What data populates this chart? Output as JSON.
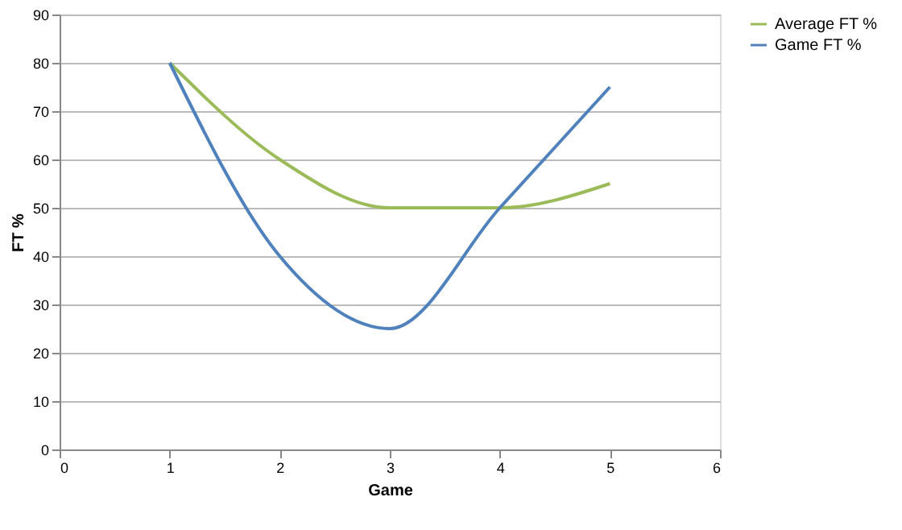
{
  "chart_data": {
    "type": "line",
    "xlabel": "Game",
    "ylabel": "FT %",
    "x": [
      1,
      2,
      3,
      4,
      5
    ],
    "series": [
      {
        "name": "Average FT %",
        "color": "#9bbb59",
        "values": [
          80,
          60,
          50,
          50,
          55
        ]
      },
      {
        "name": "Game FT %",
        "color": "#4f81bd",
        "values": [
          80,
          40,
          25,
          50,
          75
        ]
      }
    ],
    "xlim": [
      0,
      6
    ],
    "xticks": [
      0,
      1,
      2,
      3,
      4,
      5,
      6
    ],
    "ylim": [
      0,
      90
    ],
    "yticks": [
      0,
      10,
      20,
      30,
      40,
      50,
      60,
      70,
      80,
      90
    ],
    "grid": "y",
    "legend": "right",
    "marker": "none",
    "line_style": "solid"
  }
}
